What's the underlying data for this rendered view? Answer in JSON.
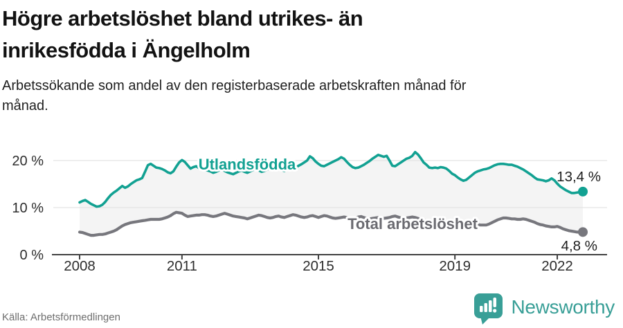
{
  "header": {
    "title": "Högre arbetslöshet bland utrikes- än inrikesfödda i Ängelholm",
    "subtitle": "Arbetssökande som andel av den registerbaserade arbetskraften månad för månad."
  },
  "footer": {
    "source": "Källa: Arbetsförmedlingen",
    "brand": "Newsworthy"
  },
  "colors": {
    "accent_teal": "#12a192",
    "line_gray": "#77777d",
    "label_gray": "#6a6a70",
    "band_fill": "#f4f4f4",
    "grid": "#e4e4e4",
    "axis": "#404040",
    "axis_text": "#2d2d2d",
    "value_label": "#1c1c1c",
    "logo_teal": "#399f97"
  },
  "chart_data": {
    "type": "line",
    "unit": "%",
    "frequency": "monthly",
    "x_start": "2008-01",
    "x_end": "2022-10",
    "ylim": [
      0,
      23
    ],
    "grid": "horizontal",
    "legend_position": "inline-labels",
    "y_ticks": [
      {
        "value": 0,
        "label": "0 %"
      },
      {
        "value": 10,
        "label": "10 %"
      },
      {
        "value": 20,
        "label": "20 %"
      }
    ],
    "x_ticks": [
      {
        "year": 2008,
        "label": "2008"
      },
      {
        "year": 2011,
        "label": "2011"
      },
      {
        "year": 2015,
        "label": "2015"
      },
      {
        "year": 2019,
        "label": "2019"
      },
      {
        "year": 2022,
        "label": "2022"
      }
    ],
    "series": [
      {
        "name": "Utlandsfödda",
        "color": "#12a192",
        "end_label": "13,4 %",
        "end_value": 13.4,
        "values": [
          11.1,
          11.4,
          11.6,
          11.2,
          10.8,
          10.5,
          10.2,
          10.3,
          10.6,
          11.2,
          12.0,
          12.7,
          13.2,
          13.6,
          14.1,
          14.6,
          14.2,
          14.5,
          15.0,
          15.4,
          15.8,
          16.0,
          16.3,
          17.6,
          19.0,
          19.3,
          18.9,
          18.5,
          18.4,
          18.2,
          17.9,
          17.5,
          17.3,
          17.7,
          18.7,
          19.6,
          20.1,
          19.7,
          19.0,
          18.3,
          18.6,
          18.8,
          18.4,
          18.2,
          18.0,
          17.9,
          17.7,
          17.4,
          17.6,
          17.9,
          18.1,
          17.8,
          17.5,
          17.3,
          17.1,
          17.4,
          17.7,
          17.9,
          17.6,
          17.4,
          17.7,
          18.0,
          18.2,
          17.9,
          17.6,
          17.8,
          18.1,
          18.4,
          18.2,
          18.0,
          18.3,
          18.0,
          17.8,
          18.1,
          18.4,
          18.2,
          18.5,
          18.9,
          19.2,
          19.6,
          20.0,
          20.9,
          20.5,
          19.8,
          19.3,
          18.9,
          18.8,
          19.1,
          19.4,
          19.7,
          20.0,
          20.3,
          20.7,
          20.4,
          19.7,
          19.1,
          18.6,
          18.4,
          18.5,
          18.8,
          19.1,
          19.5,
          19.9,
          20.4,
          20.8,
          21.2,
          21.0,
          20.8,
          21.0,
          20.0,
          18.9,
          18.8,
          19.2,
          19.6,
          20.0,
          20.4,
          20.6,
          21.0,
          21.8,
          21.3,
          20.5,
          19.6,
          19.1,
          18.5,
          18.4,
          18.5,
          18.4,
          18.6,
          18.5,
          18.3,
          17.8,
          17.2,
          16.9,
          16.4,
          16.0,
          15.7,
          15.9,
          16.4,
          16.9,
          17.4,
          17.7,
          17.9,
          18.1,
          18.2,
          18.4,
          18.7,
          19.0,
          19.2,
          19.3,
          19.3,
          19.2,
          19.1,
          19.1,
          18.9,
          18.7,
          18.4,
          18.1,
          17.7,
          17.3,
          16.9,
          16.4,
          16.0,
          15.9,
          15.8,
          15.6,
          15.8,
          16.2,
          15.8,
          15.1,
          14.5,
          14.1,
          13.7,
          13.4,
          13.1,
          13.1,
          13.2,
          13.3,
          13.4
        ]
      },
      {
        "name": "Total arbetslöshet",
        "color": "#77777d",
        "end_label": "4,8 %",
        "end_value": 4.8,
        "values": [
          4.8,
          4.7,
          4.5,
          4.3,
          4.1,
          4.1,
          4.2,
          4.3,
          4.3,
          4.4,
          4.6,
          4.8,
          5.0,
          5.3,
          5.7,
          6.1,
          6.4,
          6.6,
          6.8,
          6.9,
          7.0,
          7.1,
          7.2,
          7.3,
          7.4,
          7.5,
          7.5,
          7.5,
          7.5,
          7.6,
          7.8,
          8.0,
          8.3,
          8.7,
          9.0,
          8.9,
          8.8,
          8.4,
          8.1,
          8.2,
          8.3,
          8.4,
          8.4,
          8.5,
          8.5,
          8.4,
          8.2,
          8.1,
          8.2,
          8.4,
          8.6,
          8.8,
          8.6,
          8.4,
          8.2,
          8.1,
          8.0,
          7.9,
          7.8,
          7.6,
          7.8,
          8.0,
          8.2,
          8.4,
          8.3,
          8.1,
          7.9,
          7.8,
          7.9,
          8.1,
          8.2,
          8.0,
          7.9,
          8.1,
          8.3,
          8.5,
          8.4,
          8.2,
          8.0,
          7.9,
          8.0,
          8.2,
          8.3,
          8.1,
          7.9,
          8.1,
          8.3,
          8.2,
          8.0,
          7.8,
          7.7,
          7.8,
          7.9,
          8.0,
          7.9,
          7.8,
          7.7,
          7.8,
          8.0,
          8.1,
          7.9,
          7.7,
          7.6,
          7.7,
          7.8,
          7.9,
          7.8,
          7.7,
          7.8,
          7.9,
          8.1,
          8.2,
          8.0,
          7.8,
          7.7,
          7.8,
          7.9,
          8.0,
          7.9,
          7.7,
          7.5,
          7.3,
          7.2,
          7.1,
          7.0,
          7.0,
          7.1,
          7.2,
          7.1,
          7.0,
          6.9,
          6.8,
          6.6,
          6.5,
          6.4,
          6.3,
          6.2,
          6.2,
          6.3,
          6.3,
          6.4,
          6.3,
          6.3,
          6.3,
          6.5,
          6.8,
          7.1,
          7.4,
          7.6,
          7.8,
          7.8,
          7.7,
          7.6,
          7.6,
          7.5,
          7.5,
          7.6,
          7.5,
          7.3,
          7.1,
          6.9,
          6.6,
          6.4,
          6.3,
          6.1,
          6.0,
          5.9,
          5.9,
          6.0,
          5.8,
          5.5,
          5.3,
          5.1,
          5.0,
          4.9,
          4.8,
          4.8,
          4.8
        ]
      }
    ]
  }
}
